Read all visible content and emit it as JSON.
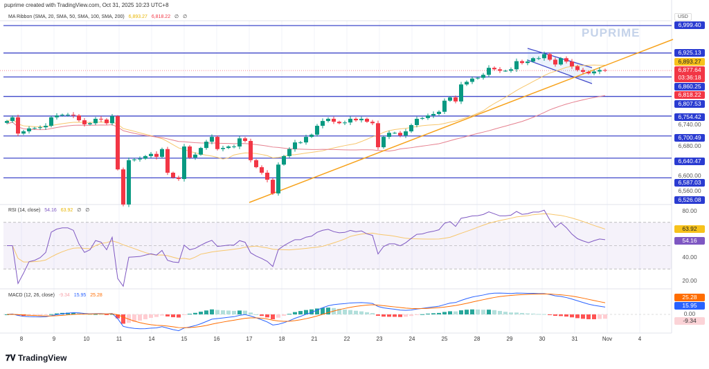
{
  "header": {
    "created": "puprime created with TradingView.com, Oct 31, 2025 10:23 UTC+8"
  },
  "ma_ribbon": {
    "label": "MA Ribbon (SMA, 20, SMA, 50, SMA, 100, SMA, 200)",
    "v1": "6,893.27",
    "v2": "6,818.22",
    "v3": "∅",
    "v4": "∅"
  },
  "rsi": {
    "label": "RSI (14, close)",
    "v1": "54.16",
    "v2": "63.92",
    "v3": "∅",
    "v4": "∅",
    "ticks": [
      "80.00",
      "40.00",
      "20.00"
    ],
    "badge_ma": "63.92",
    "badge_rsi": "54.16"
  },
  "macd": {
    "label": "MACD (12, 26, close)",
    "v1": "-9.34",
    "v2": "15.95",
    "v3": "25.28",
    "badges": {
      "signal": "25.28",
      "macd": "15.95",
      "zero": "0.00",
      "hist": "-9.34"
    }
  },
  "axis": {
    "currency": "USD",
    "ticks": [
      "6,740.00",
      "6,680.00",
      "6,600.00",
      "6,560.00"
    ]
  },
  "levels": [
    "6,999.40",
    "6,925.13",
    "6,860.25",
    "6,807.53",
    "6,754.42",
    "6,700.49",
    "6,640.47",
    "6,587.03",
    "6,526.08"
  ],
  "level_values": [
    6999.4,
    6925.13,
    6860.25,
    6807.53,
    6754.42,
    6700.49,
    6640.47,
    6587.03,
    6526.08
  ],
  "price_badges": {
    "sma20": "6,893.27",
    "last": "6,877.64",
    "countdown": "03:36:18",
    "sma50": "6,818.22"
  },
  "x_labels": [
    "8",
    "9",
    "10",
    "11",
    "14",
    "15",
    "16",
    "17",
    "18",
    "21",
    "22",
    "23",
    "24",
    "25",
    "28",
    "29",
    "30",
    "31",
    "Nov",
    "4"
  ],
  "colors": {
    "up": "#089981",
    "down": "#f23645",
    "level": "#3f47c9",
    "trend": "#f7a21b",
    "rsi": "#7e57c2",
    "macd": "#2962ff",
    "signal": "#ff6d00"
  },
  "closes": [
    6741,
    6751,
    6707,
    6713,
    6721,
    6722,
    6724,
    6728,
    6751,
    6756,
    6758,
    6758,
    6756,
    6743,
    6732,
    6735,
    6747,
    6745,
    6735,
    6754,
    6610,
    6515,
    6635,
    6637,
    6639,
    6646,
    6652,
    6644,
    6665,
    6601,
    6588,
    6584,
    6672,
    6642,
    6650,
    6668,
    6685,
    6698,
    6665,
    6668,
    6672,
    6672,
    6694,
    6687,
    6635,
    6616,
    6601,
    6582,
    6545,
    6623,
    6646,
    6665,
    6683,
    6683,
    6698,
    6704,
    6728,
    6741,
    6747,
    6739,
    6735,
    6737,
    6747,
    6743,
    6747,
    6739,
    6735,
    6670,
    6698,
    6709,
    6709,
    6702,
    6713,
    6730,
    6747,
    6749,
    6756,
    6760,
    6766,
    6796,
    6805,
    6794,
    6840,
    6847,
    6856,
    6858,
    6866,
    6885,
    6881,
    6877,
    6877,
    6881,
    6903,
    6898,
    6902,
    6911,
    6911,
    6922,
    6907,
    6894,
    6911,
    6902,
    6889,
    6879,
    6874,
    6870,
    6875,
    6879,
    6877.64
  ],
  "watermark": "PUPRIME",
  "brand": "TradingView"
}
